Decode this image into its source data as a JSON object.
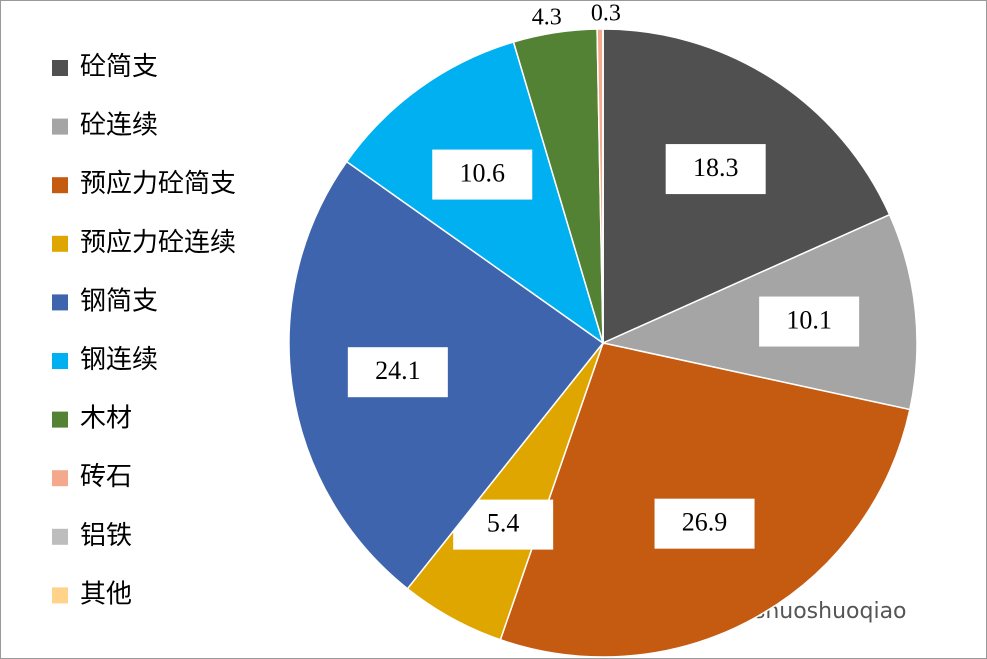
{
  "chart_data": {
    "type": "pie",
    "categories": [
      "砼简支",
      "砼连续",
      "预应力砼简支",
      "预应力砼连续",
      "钢简支",
      "钢连续",
      "木材",
      "砖石",
      "铝铁",
      "其他"
    ],
    "values": [
      18.3,
      10.1,
      26.9,
      5.4,
      24.1,
      10.6,
      4.3,
      0.3,
      0,
      0
    ],
    "colors": [
      "#505050",
      "#a5a5a5",
      "#c55a11",
      "#e0a600",
      "#3e64ae",
      "#00b0f0",
      "#548235",
      "#f4a98c",
      "#bdbdbd",
      "#ffd38a"
    ],
    "legend": "left",
    "watermark": "微信号: shuoshuoqiao"
  }
}
